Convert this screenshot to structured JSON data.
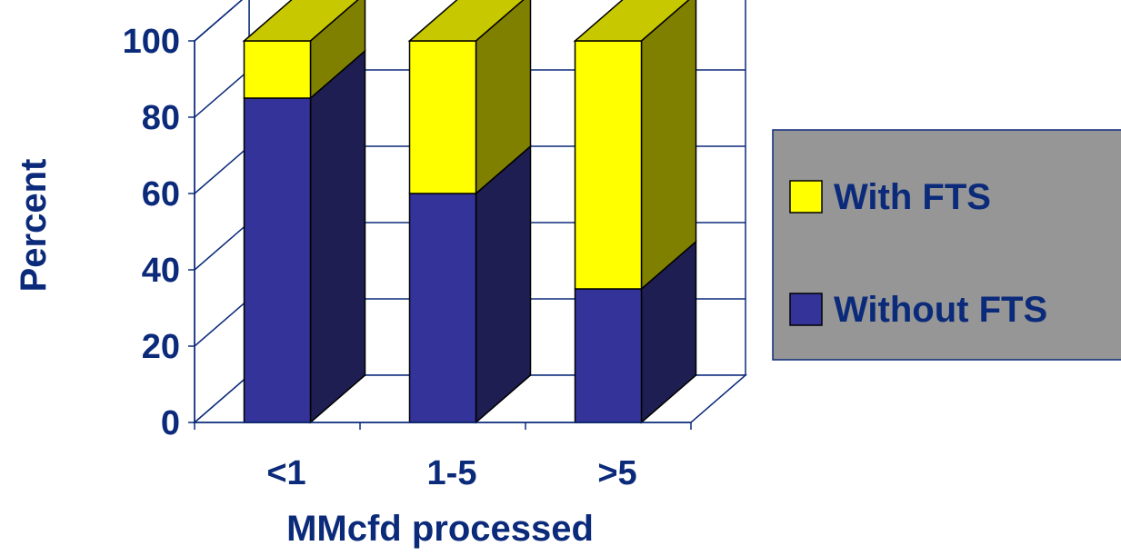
{
  "chart_data": {
    "type": "bar",
    "stacked": true,
    "three_d": true,
    "categories": [
      "<1",
      "1-5",
      ">5"
    ],
    "series": [
      {
        "name": "Without FTS",
        "values": [
          85,
          60,
          35
        ]
      },
      {
        "name": "With FTS",
        "values": [
          15,
          40,
          65
        ]
      }
    ],
    "xlabel": "MMcfd processed",
    "ylabel": "Percent",
    "ylim": [
      0,
      100
    ],
    "yticks": [
      "0",
      "20",
      "40",
      "60",
      "80",
      "100"
    ],
    "grid": true,
    "legend_position": "right",
    "colors": {
      "Without FTS": "#333399",
      "With FTS": "#ffff00",
      "text": "#0b2a7a",
      "legend_bg": "#969696"
    }
  }
}
